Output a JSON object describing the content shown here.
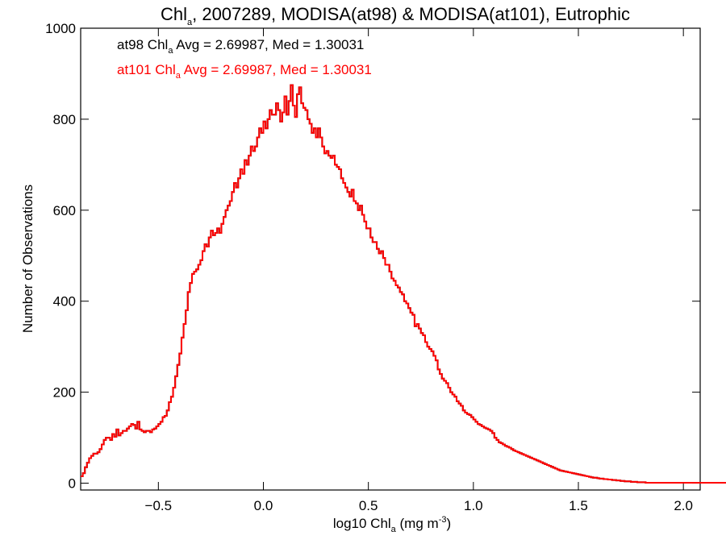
{
  "chart_data": {
    "type": "line",
    "title": {
      "pre": "Chl",
      "sub": "a",
      "post": ", 2007289, MODISA(at98) & MODISA(at101), Eutrophic"
    },
    "xlabel": {
      "pre": "log10 Chl",
      "sub": "a",
      "mid": " (mg m",
      "sup": "-3",
      "post": ")"
    },
    "ylabel": "Number of Observations",
    "xlim": [
      -0.87,
      2.08
    ],
    "ylim": [
      -15,
      1000
    ],
    "x_ticks": [
      -0.5,
      0.0,
      0.5,
      1.0,
      1.5,
      2.0
    ],
    "x_tick_labels": [
      "−0.5",
      "0.0",
      "0.5",
      "1.0",
      "1.5",
      "2.0"
    ],
    "y_ticks": [
      0,
      200,
      400,
      600,
      800,
      1000
    ],
    "y_tick_labels": [
      "0",
      "200",
      "400",
      "600",
      "800",
      "1000"
    ],
    "grid": false,
    "series": [
      {
        "name": "at98",
        "color": "#000000",
        "annotation": {
          "pre": "at98 Chl",
          "sub": "a",
          "post": " Avg = 2.69987, Med = 1.30031"
        }
      },
      {
        "name": "at101",
        "color": "#ff0000",
        "annotation": {
          "pre": "at101 Chl",
          "sub": "a",
          "post": " Avg = 2.69987, Med = 1.30031"
        }
      }
    ],
    "histogram": {
      "x_start": -0.87,
      "bin_width": 0.01,
      "counts": [
        15,
        22,
        35,
        45,
        55,
        60,
        65,
        65,
        68,
        75,
        85,
        95,
        100,
        100,
        95,
        108,
        102,
        118,
        105,
        110,
        115,
        115,
        120,
        125,
        130,
        128,
        120,
        135,
        118,
        115,
        112,
        115,
        115,
        112,
        118,
        120,
        125,
        130,
        135,
        145,
        148,
        160,
        178,
        190,
        210,
        235,
        260,
        285,
        320,
        350,
        380,
        420,
        440,
        460,
        465,
        470,
        480,
        490,
        510,
        525,
        520,
        540,
        555,
        545,
        550,
        560,
        550,
        570,
        585,
        600,
        610,
        620,
        640,
        660,
        650,
        670,
        690,
        680,
        710,
        700,
        720,
        740,
        730,
        740,
        760,
        780,
        770,
        795,
        780,
        800,
        820,
        810,
        810,
        835,
        820,
        795,
        815,
        850,
        810,
        840,
        875,
        830,
        805,
        855,
        870,
        835,
        825,
        820,
        800,
        790,
        770,
        780,
        760,
        780,
        760,
        740,
        725,
        730,
        720,
        715,
        720,
        700,
        695,
        690,
        670,
        660,
        650,
        640,
        630,
        645,
        620,
        615,
        600,
        610,
        590,
        575,
        560,
        560,
        540,
        530,
        530,
        515,
        505,
        510,
        495,
        480,
        480,
        465,
        450,
        445,
        435,
        430,
        420,
        415,
        400,
        395,
        385,
        375,
        370,
        345,
        350,
        340,
        330,
        325,
        310,
        300,
        295,
        290,
        280,
        270,
        250,
        240,
        230,
        225,
        220,
        210,
        200,
        195,
        190,
        180,
        175,
        170,
        160,
        155,
        152,
        150,
        145,
        140,
        135,
        130,
        128,
        125,
        122,
        120,
        118,
        115,
        110,
        100,
        95,
        90,
        88,
        85,
        82,
        80,
        78,
        75,
        72,
        70,
        68,
        66,
        64,
        62,
        60,
        58,
        56,
        54,
        52,
        50,
        48,
        46,
        44,
        42,
        40,
        38,
        36,
        34,
        32,
        30,
        28,
        27,
        26,
        25,
        24,
        23,
        22,
        21,
        20,
        19,
        18,
        17,
        16,
        15,
        14,
        13,
        12,
        12,
        11,
        10,
        10,
        9,
        9,
        8,
        8,
        7,
        7,
        6,
        6,
        5,
        5,
        4,
        4,
        4,
        3,
        3,
        3,
        2,
        2,
        2,
        2,
        1,
        1,
        1,
        1,
        1,
        1,
        1,
        1,
        1,
        1,
        1,
        1,
        1,
        1,
        1,
        1,
        1,
        1,
        1,
        1,
        1,
        1,
        1,
        1,
        1,
        1,
        1,
        1,
        1,
        1,
        1,
        1,
        1,
        1,
        1,
        1,
        1,
        1,
        1,
        1,
        1,
        1
      ]
    }
  }
}
